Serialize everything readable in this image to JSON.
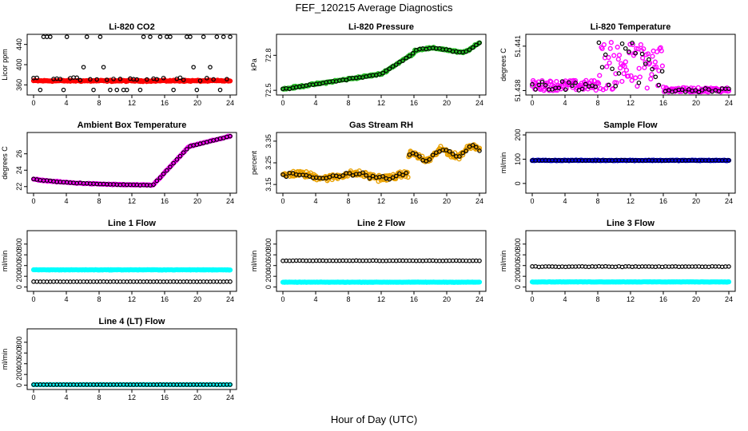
{
  "figure": {
    "title": "FEF_120215  Average Diagnostics",
    "xlabel": "Hour of Day (UTC)"
  },
  "chart_data": [
    {
      "type": "scatter",
      "title": "Li-820 CO2",
      "ylabel": "Licor ppm",
      "xlim": [
        0,
        24
      ],
      "ylim": [
        340,
        460
      ],
      "xticks": [
        "0",
        "4",
        "8",
        "12",
        "16",
        "20",
        "24"
      ],
      "yticks": [
        "360",
        "400",
        "440"
      ],
      "series": [
        {
          "color": "#ff0000",
          "pattern": "flat",
          "base": 368,
          "noise": 2,
          "n": 220
        },
        {
          "color": "#000000",
          "pattern": "co2",
          "n": 60
        }
      ]
    },
    {
      "type": "scatter",
      "title": "Li-820 Pressure",
      "ylabel": "kPa",
      "xlim": [
        0,
        24
      ],
      "ylim": [
        72.46,
        72.98
      ],
      "xticks": [
        "0",
        "4",
        "8",
        "12",
        "16",
        "20",
        "24"
      ],
      "yticks": [
        "72.5",
        "72.8"
      ],
      "series": [
        {
          "color": "#22bb22",
          "pattern": "pressure",
          "noise": 0.012,
          "n": 220
        },
        {
          "color": "#000000",
          "pattern": "pressure",
          "noise": 0.008,
          "n": 60
        }
      ]
    },
    {
      "type": "scatter",
      "title": "Li-820 Temperature",
      "ylabel": "degrees C",
      "xlim": [
        0,
        24
      ],
      "ylim": [
        51.4377,
        51.4418
      ],
      "xticks": [
        "0",
        "4",
        "8",
        "12",
        "16",
        "20",
        "24"
      ],
      "yticks": [
        "51.438",
        "51.441"
      ],
      "series": [
        {
          "color": "#ff00ff",
          "pattern": "temp",
          "n": 220
        },
        {
          "color": "#000000",
          "pattern": "temp",
          "n": 60
        }
      ]
    },
    {
      "type": "scatter",
      "title": "Ambient Box Temperature",
      "ylabel": "degrees C",
      "xlim": [
        0,
        24
      ],
      "ylim": [
        21.2,
        28.6
      ],
      "xticks": [
        "0",
        "4",
        "8",
        "12",
        "16",
        "20",
        "24"
      ],
      "yticks": [
        "22",
        "24",
        "26"
      ],
      "series": [
        {
          "color": "#ff00ff",
          "pattern": "box",
          "noise": 0.08,
          "n": 200
        },
        {
          "color": "#000000",
          "pattern": "box",
          "noise": 0.05,
          "n": 60
        }
      ]
    },
    {
      "type": "scatter",
      "title": "Gas Stream RH",
      "ylabel": "percent",
      "xlim": [
        0,
        24
      ],
      "ylim": [
        3.11,
        3.39
      ],
      "xticks": [
        "0",
        "4",
        "8",
        "12",
        "16",
        "20",
        "24"
      ],
      "yticks": [
        "3.15",
        "3.25",
        "3.35"
      ],
      "series": [
        {
          "color": "#e8a000",
          "pattern": "rh",
          "noise": 0.02,
          "n": 320
        },
        {
          "color": "#000000",
          "pattern": "rh",
          "noise": 0.012,
          "n": 60
        }
      ]
    },
    {
      "type": "scatter",
      "title": "Sample Flow",
      "ylabel": "ml/min",
      "xlim": [
        0,
        24
      ],
      "ylim": [
        -40,
        210
      ],
      "xticks": [
        "0",
        "4",
        "8",
        "12",
        "16",
        "20",
        "24"
      ],
      "yticks": [
        "0",
        "100",
        "200"
      ],
      "series": [
        {
          "color": "#0000ff",
          "pattern": "flat",
          "base": 95,
          "noise": 2,
          "n": 220
        },
        {
          "color": "#000000",
          "pattern": "flat",
          "base": 95,
          "noise": 1,
          "n": 60
        }
      ]
    },
    {
      "type": "scatter",
      "title": "Line 1 Flow",
      "ylabel": "ml/min",
      "xlim": [
        0,
        24
      ],
      "ylim": [
        -80,
        1050
      ],
      "xticks": [
        "0",
        "4",
        "8",
        "12",
        "16",
        "20",
        "24"
      ],
      "yticks": [
        "0",
        "200",
        "400",
        "600",
        "800"
      ],
      "series": [
        {
          "color": "#00ffff",
          "pattern": "flat",
          "base": 320,
          "noise": 6,
          "n": 220
        },
        {
          "color": "#000000",
          "pattern": "flat",
          "base": 100,
          "noise": 2,
          "n": 60
        }
      ]
    },
    {
      "type": "scatter",
      "title": "Line 2 Flow",
      "ylabel": "ml/min",
      "xlim": [
        0,
        24
      ],
      "ylim": [
        -80,
        1050
      ],
      "xticks": [
        "0",
        "4",
        "8",
        "12",
        "16",
        "20",
        "24"
      ],
      "yticks": [
        "0",
        "200",
        "400",
        "600",
        "800"
      ],
      "series": [
        {
          "color": "#00ffff",
          "pattern": "flat",
          "base": 90,
          "noise": 5,
          "n": 220
        },
        {
          "color": "#000000",
          "pattern": "flat",
          "base": 490,
          "noise": 4,
          "n": 60
        }
      ]
    },
    {
      "type": "scatter",
      "title": "Line 3 Flow",
      "ylabel": "ml/min",
      "xlim": [
        0,
        24
      ],
      "ylim": [
        -80,
        1050
      ],
      "xticks": [
        "0",
        "4",
        "8",
        "12",
        "16",
        "20",
        "24"
      ],
      "yticks": [
        "0",
        "200",
        "400",
        "600",
        "800"
      ],
      "series": [
        {
          "color": "#00ffff",
          "pattern": "flat",
          "base": 95,
          "noise": 5,
          "n": 220
        },
        {
          "color": "#000000",
          "pattern": "flat",
          "base": 380,
          "noise": 10,
          "n": 60
        }
      ]
    },
    {
      "type": "scatter",
      "title": "Line 4 (LT) Flow",
      "ylabel": "ml/min",
      "xlim": [
        0,
        24
      ],
      "ylim": [
        -80,
        1050
      ],
      "xticks": [
        "0",
        "4",
        "8",
        "12",
        "16",
        "20",
        "24"
      ],
      "yticks": [
        "0",
        "200",
        "400",
        "600",
        "800"
      ],
      "series": [
        {
          "color": "#00ffff",
          "pattern": "flat",
          "base": 10,
          "noise": 2,
          "n": 200
        },
        {
          "color": "#000000",
          "pattern": "flat",
          "base": 10,
          "noise": 2,
          "n": 60
        }
      ]
    }
  ]
}
